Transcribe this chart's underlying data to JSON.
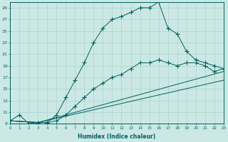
{
  "xlabel": "Humidex (Indice chaleur)",
  "xlim": [
    0,
    23
  ],
  "ylim": [
    9,
    30
  ],
  "xticks": [
    0,
    1,
    2,
    3,
    4,
    5,
    6,
    7,
    8,
    9,
    10,
    11,
    12,
    13,
    14,
    15,
    16,
    17,
    18,
    19,
    20,
    21,
    22,
    23
  ],
  "yticks": [
    9,
    11,
    13,
    15,
    17,
    19,
    21,
    23,
    25,
    27,
    29
  ],
  "background_color": "#cce8e4",
  "line_color": "#006060",
  "grid_color": "#aad4cc",
  "marker": "+",
  "marker_size": 4,
  "series": [
    {
      "x": [
        0,
        1,
        2,
        3,
        4,
        5,
        6,
        7,
        8,
        9,
        10,
        11,
        12,
        13,
        14,
        15,
        16,
        17,
        18,
        19,
        20,
        21,
        22,
        23
      ],
      "y": [
        9.5,
        10.5,
        9.0,
        9.2,
        9.2,
        10.5,
        13.5,
        16.5,
        19.5,
        23.0,
        25.5,
        27.0,
        27.5,
        28.2,
        29.0,
        29.0,
        30.0,
        25.5,
        24.5,
        21.5,
        20.0,
        19.5,
        19.0,
        18.5
      ]
    },
    {
      "x": [
        0,
        3,
        4,
        5,
        6,
        7,
        8,
        9,
        10,
        11,
        12,
        13,
        14,
        15,
        16,
        17,
        18,
        19,
        20,
        21,
        22,
        23
      ],
      "y": [
        9.5,
        9.2,
        9.2,
        9.5,
        10.5,
        12.0,
        13.5,
        15.0,
        16.0,
        17.0,
        17.5,
        18.5,
        19.5,
        19.5,
        20.0,
        19.5,
        19.0,
        19.5,
        19.5,
        19.0,
        18.0,
        18.5
      ]
    },
    {
      "x": [
        0,
        3,
        23
      ],
      "y": [
        9.5,
        9.2,
        18.0
      ]
    },
    {
      "x": [
        0,
        3,
        23
      ],
      "y": [
        9.5,
        9.2,
        16.5
      ]
    }
  ]
}
